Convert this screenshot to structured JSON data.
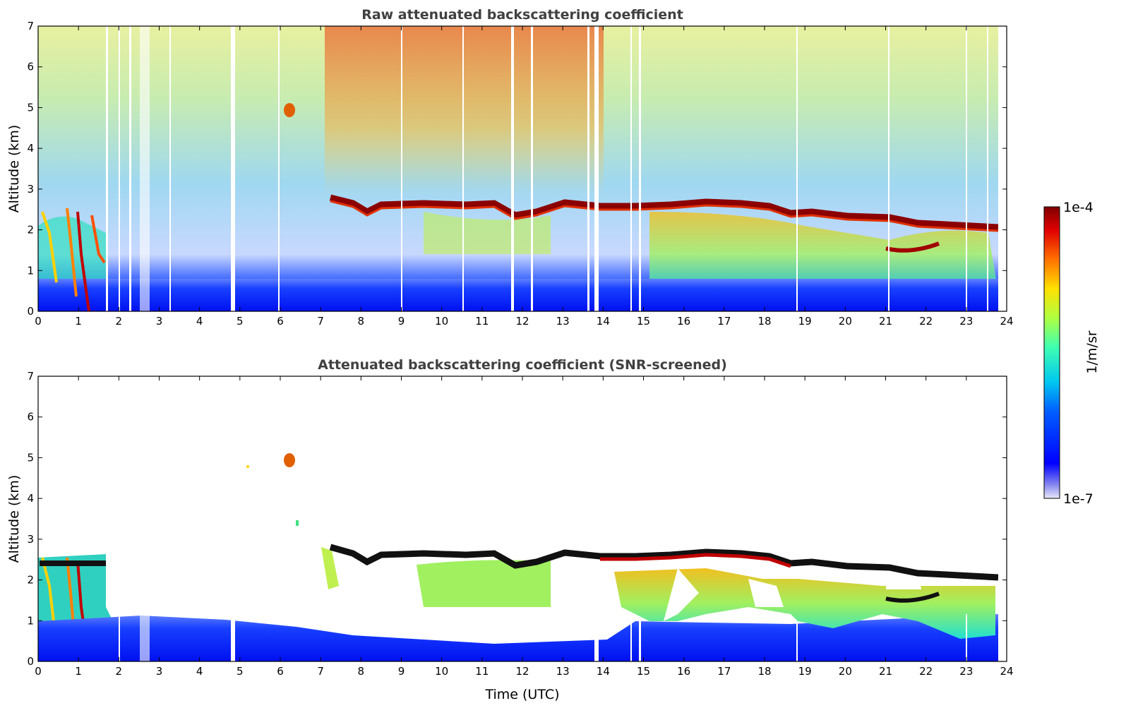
{
  "chart_data": [
    {
      "type": "heatmap",
      "title": "Raw attenuated backscattering coefficient",
      "xlabel": "",
      "ylabel": "Altitude (km)",
      "xlim": [
        0,
        24
      ],
      "ylim": [
        0,
        7
      ],
      "xticks": [
        "0",
        "1",
        "2",
        "3",
        "4",
        "5",
        "6",
        "7",
        "8",
        "9",
        "10",
        "11",
        "12",
        "13",
        "14",
        "15",
        "16",
        "17",
        "18",
        "19",
        "20",
        "21",
        "22",
        "23",
        "24"
      ],
      "yticks": [
        "0",
        "1",
        "2",
        "3",
        "4",
        "5",
        "6",
        "7"
      ],
      "cloud_layer_top_km": [
        {
          "t": 7.3,
          "z": 2.8
        },
        {
          "t": 8.0,
          "z": 2.6
        },
        {
          "t": 9.0,
          "z": 2.65
        },
        {
          "t": 10.0,
          "z": 2.6
        },
        {
          "t": 11.0,
          "z": 2.65
        },
        {
          "t": 12.0,
          "z": 2.7
        },
        {
          "t": 13.0,
          "z": 2.7
        },
        {
          "t": 14.0,
          "z": 2.6
        },
        {
          "t": 15.0,
          "z": 2.55
        },
        {
          "t": 16.0,
          "z": 2.65
        },
        {
          "t": 17.0,
          "z": 2.7
        },
        {
          "t": 18.0,
          "z": 2.55
        },
        {
          "t": 19.0,
          "z": 2.45
        },
        {
          "t": 20.0,
          "z": 2.35
        },
        {
          "t": 21.0,
          "z": 2.3
        },
        {
          "t": 22.0,
          "z": 2.2
        },
        {
          "t": 23.0,
          "z": 2.15
        },
        {
          "t": 23.8,
          "z": 2.1
        }
      ]
    },
    {
      "type": "heatmap",
      "title": "Attenuated backscattering coefficient (SNR-screened)",
      "xlabel": "Time (UTC)",
      "ylabel": "Altitude (km)",
      "xlim": [
        0,
        24
      ],
      "ylim": [
        0,
        7
      ],
      "xticks": [
        "0",
        "1",
        "2",
        "3",
        "4",
        "5",
        "6",
        "7",
        "8",
        "9",
        "10",
        "11",
        "12",
        "13",
        "14",
        "15",
        "16",
        "17",
        "18",
        "19",
        "20",
        "21",
        "22",
        "23",
        "24"
      ],
      "yticks": [
        "0",
        "1",
        "2",
        "3",
        "4",
        "5",
        "6",
        "7"
      ]
    }
  ],
  "colorbar": {
    "label": "1/m/sr",
    "max_label": "1e-4",
    "min_label": "1e-7",
    "range": [
      1e-07,
      0.0001
    ],
    "scale": "log",
    "colormap": "jet"
  }
}
